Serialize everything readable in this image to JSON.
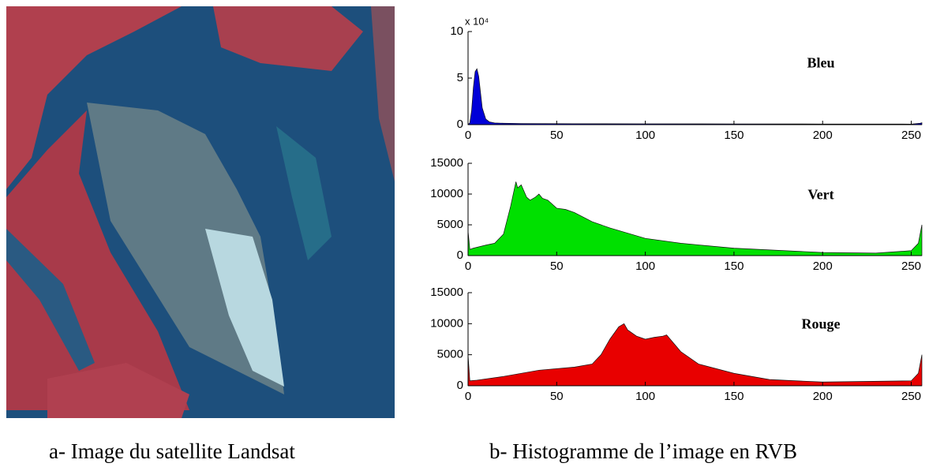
{
  "chart_data": [
    {
      "type": "area",
      "xlim": [
        0,
        256
      ],
      "xticks": [
        0,
        50,
        100,
        150,
        200,
        250
      ],
      "ylim": [
        0,
        100000
      ],
      "yticks": [
        0,
        {
          "value": 50000,
          "label": "5"
        },
        {
          "value": 100000,
          "label": "10"
        }
      ],
      "y_multiplier": "x 10⁴",
      "series": [
        {
          "name": "Bleu",
          "color": "#0000d8",
          "x": [
            0,
            1,
            2,
            3,
            4,
            5,
            6,
            7,
            8,
            10,
            12,
            15,
            20,
            30,
            60,
            100,
            150,
            200,
            250,
            255,
            256
          ],
          "values": [
            0,
            2000,
            15000,
            40000,
            57000,
            60000,
            52000,
            35000,
            18000,
            6000,
            3000,
            1800,
            1500,
            1200,
            1000,
            900,
            800,
            700,
            600,
            1500,
            2000
          ]
        }
      ]
    },
    {
      "type": "area",
      "xlim": [
        0,
        256
      ],
      "xticks": [
        0,
        50,
        100,
        150,
        200,
        250
      ],
      "ylim": [
        0,
        15000
      ],
      "yticks": [
        0,
        5000,
        10000,
        15000
      ],
      "series": [
        {
          "name": "Vert",
          "color": "#00e000",
          "x": [
            0,
            1,
            3,
            10,
            15,
            20,
            24,
            27,
            28,
            30,
            33,
            35,
            38,
            40,
            42,
            45,
            50,
            55,
            60,
            70,
            80,
            100,
            120,
            150,
            200,
            230,
            250,
            254,
            256
          ],
          "values": [
            4000,
            1000,
            1200,
            1700,
            2000,
            3500,
            8000,
            12000,
            11000,
            11500,
            9500,
            9000,
            9500,
            10000,
            9300,
            9000,
            7700,
            7500,
            7000,
            5500,
            4500,
            2800,
            2000,
            1200,
            500,
            400,
            800,
            2000,
            5000
          ]
        }
      ]
    },
    {
      "type": "area",
      "xlim": [
        0,
        256
      ],
      "xticks": [
        0,
        50,
        100,
        150,
        200,
        250
      ],
      "ylim": [
        0,
        15000
      ],
      "yticks": [
        0,
        5000,
        10000,
        15000
      ],
      "series": [
        {
          "name": "Rouge",
          "color": "#e80000",
          "x": [
            0,
            1,
            5,
            20,
            40,
            60,
            70,
            75,
            80,
            85,
            88,
            90,
            95,
            100,
            105,
            110,
            112,
            120,
            130,
            150,
            170,
            200,
            250,
            254,
            256
          ],
          "values": [
            5000,
            800,
            900,
            1500,
            2500,
            3000,
            3500,
            5000,
            7500,
            9500,
            10000,
            9000,
            8000,
            7500,
            7800,
            8000,
            8200,
            5500,
            3500,
            2000,
            1000,
            600,
            800,
            2000,
            5000
          ]
        }
      ]
    }
  ],
  "captions": {
    "left": "a-  Image du satellite Landsat",
    "right": "b-  Histogramme de l’image en RVB"
  }
}
